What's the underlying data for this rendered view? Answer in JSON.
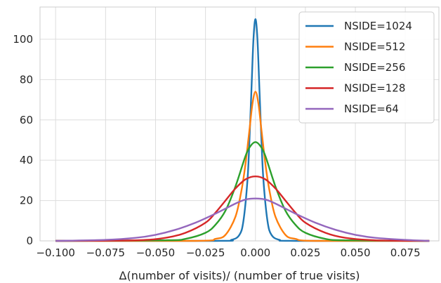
{
  "chart_data": {
    "type": "line",
    "xlabel": "Δ(number of visits)/ (number of true visits)",
    "ylabel": "",
    "xlim": [
      -0.1078,
      0.0918
    ],
    "ylim": [
      0,
      116
    ],
    "xticks": [
      -0.1,
      -0.075,
      -0.05,
      -0.025,
      0.0,
      0.025,
      0.05,
      0.075
    ],
    "xtick_labels": [
      "−0.100",
      "−0.075",
      "−0.050",
      "−0.025",
      "0.000",
      "0.025",
      "0.050",
      "0.075"
    ],
    "yticks": [
      0,
      20,
      40,
      60,
      80,
      100
    ],
    "ytick_labels": [
      "0",
      "20",
      "40",
      "60",
      "80",
      "100"
    ],
    "grid": true,
    "legend_position": "top-right",
    "series": [
      {
        "name": "NSIDE=1024",
        "color": "#1f77b4",
        "x": [
          -0.1,
          -0.02,
          -0.012,
          -0.008,
          -0.006,
          -0.004,
          -0.003,
          -0.002,
          -0.001,
          0.0,
          0.001,
          0.002,
          0.003,
          0.004,
          0.006,
          0.008,
          0.012,
          0.02,
          0.087
        ],
        "y": [
          0,
          0,
          0.5,
          3,
          10,
          30,
          50,
          75,
          100,
          110,
          100,
          75,
          50,
          30,
          10,
          3,
          0.5,
          0,
          0
        ]
      },
      {
        "name": "NSIDE=512",
        "color": "#ff7f0e",
        "x": [
          -0.1,
          -0.03,
          -0.02,
          -0.015,
          -0.01,
          -0.007,
          -0.005,
          -0.003,
          -0.0015,
          0.0,
          0.0015,
          0.003,
          0.005,
          0.007,
          0.01,
          0.015,
          0.02,
          0.03,
          0.087
        ],
        "y": [
          0,
          0,
          1,
          3,
          12,
          25,
          38,
          55,
          68,
          74,
          68,
          55,
          38,
          25,
          12,
          3,
          1,
          0,
          0
        ]
      },
      {
        "name": "NSIDE=256",
        "color": "#2ca02c",
        "x": [
          -0.1,
          -0.045,
          -0.035,
          -0.025,
          -0.02,
          -0.015,
          -0.01,
          -0.005,
          -0.0025,
          0.0,
          0.0025,
          0.005,
          0.01,
          0.015,
          0.02,
          0.025,
          0.035,
          0.045,
          0.087
        ],
        "y": [
          0,
          0.3,
          1,
          4,
          8,
          15,
          27,
          42,
          47,
          49,
          47,
          42,
          27,
          15,
          8,
          4,
          1,
          0.3,
          0
        ]
      },
      {
        "name": "NSIDE=128",
        "color": "#d62728",
        "x": [
          -0.1,
          -0.06,
          -0.045,
          -0.035,
          -0.025,
          -0.02,
          -0.015,
          -0.01,
          -0.005,
          0.0,
          0.005,
          0.01,
          0.015,
          0.02,
          0.025,
          0.035,
          0.045,
          0.06,
          0.087
        ],
        "y": [
          0,
          0.3,
          1.5,
          4,
          9,
          14,
          20,
          26,
          30.5,
          32,
          30.5,
          26,
          20,
          14,
          9,
          4,
          1.5,
          0.3,
          0
        ]
      },
      {
        "name": "NSIDE=64",
        "color": "#9467bd",
        "x": [
          -0.1,
          -0.075,
          -0.06,
          -0.05,
          -0.04,
          -0.03,
          -0.02,
          -0.01,
          -0.005,
          0.0,
          0.005,
          0.01,
          0.02,
          0.03,
          0.04,
          0.05,
          0.06,
          0.075,
          0.087
        ],
        "y": [
          0,
          0.5,
          1.5,
          3,
          5.5,
          9,
          13.5,
          18.5,
          20.5,
          21,
          20.5,
          18.5,
          13.5,
          9,
          5.5,
          3,
          1.5,
          0.5,
          0
        ]
      }
    ]
  }
}
